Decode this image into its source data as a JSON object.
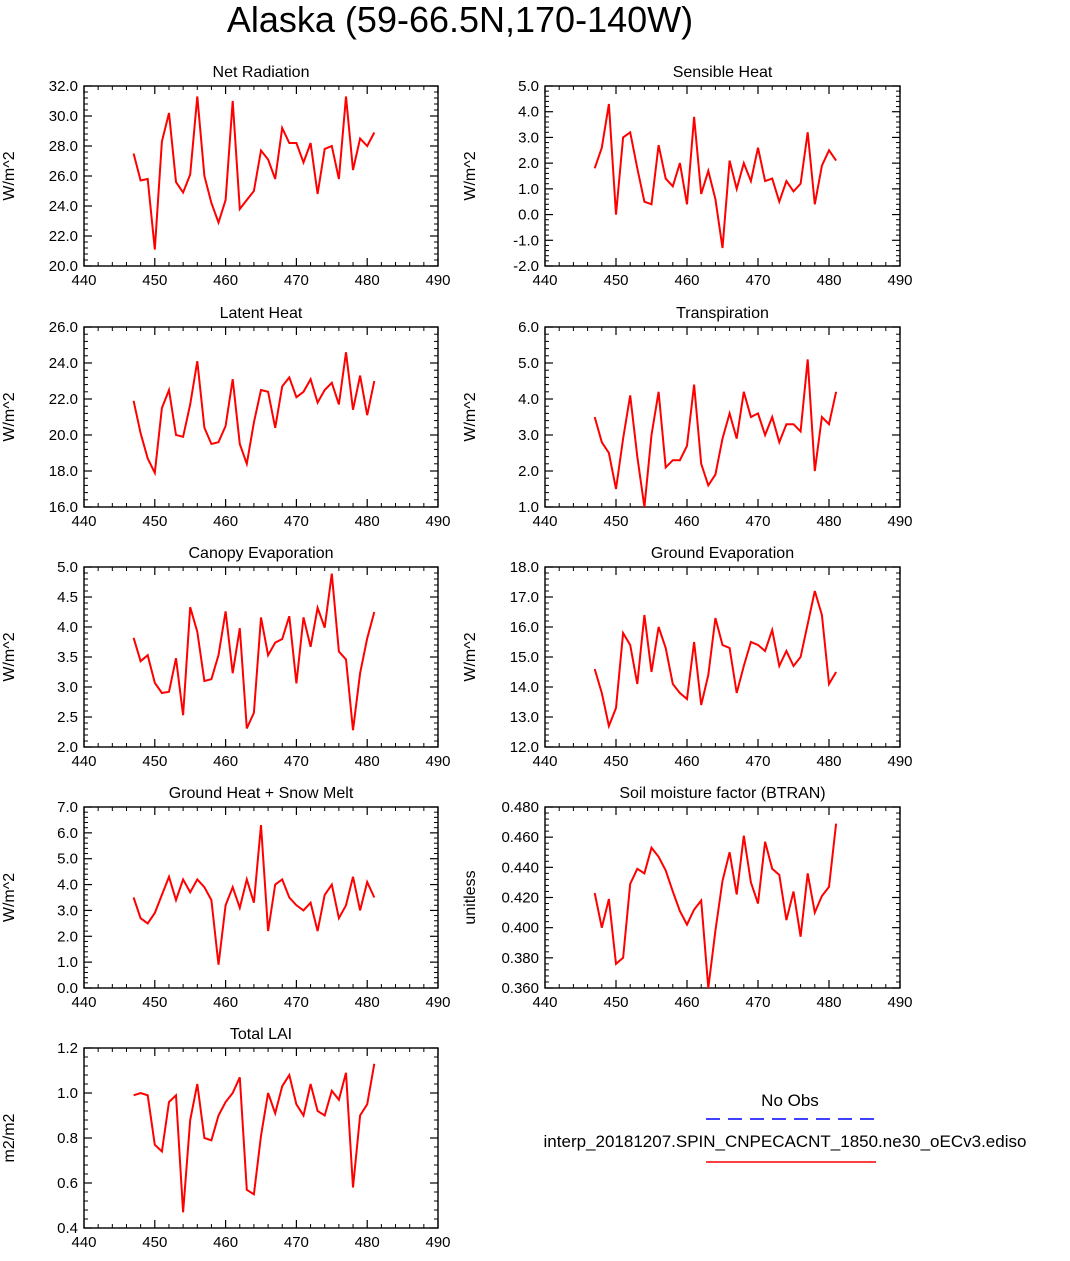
{
  "figure": {
    "title": "Alaska (59-66.5N,170-140W)",
    "line_color": "#ff0000",
    "legend": {
      "obs_label": "No Obs",
      "obs_color": "#0000ff",
      "model_label": "interp_20181207.SPIN_CNPECACNT_1850.ne30_oECv3.ediso",
      "model_color": "#ff0000"
    }
  },
  "chart_data": [
    {
      "type": "line",
      "title": "Net Radiation",
      "xlabel": "",
      "ylabel": "W/m^2",
      "xlim": [
        440,
        490
      ],
      "ylim": [
        20.0,
        32.0
      ],
      "xticks": [
        440,
        450,
        460,
        470,
        480,
        490
      ],
      "yticks": [
        "20.0",
        "22.0",
        "24.0",
        "26.0",
        "28.0",
        "30.0",
        "32.0"
      ],
      "x": [
        447,
        448,
        449,
        450,
        451,
        452,
        453,
        454,
        455,
        456,
        457,
        458,
        459,
        460,
        461,
        462,
        463,
        464,
        465,
        466,
        467,
        468,
        469,
        470,
        471,
        472,
        473,
        474,
        475,
        476,
        477,
        478,
        479,
        480,
        481
      ],
      "y": [
        27.5,
        25.7,
        25.8,
        21.1,
        28.3,
        30.2,
        25.6,
        24.9,
        26.1,
        31.3,
        26.0,
        24.2,
        22.9,
        24.4,
        31.0,
        23.8,
        24.4,
        25.0,
        27.7,
        27.1,
        25.8,
        29.2,
        28.2,
        28.2,
        26.9,
        28.2,
        24.8,
        27.8,
        28.0,
        25.8,
        31.3,
        26.4,
        28.5,
        28.0,
        28.9
      ]
    },
    {
      "type": "line",
      "title": "Sensible Heat",
      "xlabel": "",
      "ylabel": "W/m^2",
      "xlim": [
        440,
        490
      ],
      "ylim": [
        -2.0,
        5.0
      ],
      "xticks": [
        440,
        450,
        460,
        470,
        480,
        490
      ],
      "yticks": [
        "-2.0",
        "-1.0",
        "0.0",
        "1.0",
        "2.0",
        "3.0",
        "4.0",
        "5.0"
      ],
      "x": [
        447,
        448,
        449,
        450,
        451,
        452,
        453,
        454,
        455,
        456,
        457,
        458,
        459,
        460,
        461,
        462,
        463,
        464,
        465,
        466,
        467,
        468,
        469,
        470,
        471,
        472,
        473,
        474,
        475,
        476,
        477,
        478,
        479,
        480,
        481
      ],
      "y": [
        1.8,
        2.6,
        4.3,
        0.0,
        3.0,
        3.2,
        1.8,
        0.5,
        0.4,
        2.7,
        1.4,
        1.1,
        2.0,
        0.4,
        3.8,
        0.8,
        1.7,
        0.6,
        -1.3,
        2.1,
        1.0,
        2.0,
        1.3,
        2.6,
        1.3,
        1.4,
        0.5,
        1.3,
        0.9,
        1.2,
        3.2,
        0.4,
        1.9,
        2.5,
        2.1
      ]
    },
    {
      "type": "line",
      "title": "Latent Heat",
      "xlabel": "",
      "ylabel": "W/m^2",
      "xlim": [
        440,
        490
      ],
      "ylim": [
        16.0,
        26.0
      ],
      "xticks": [
        440,
        450,
        460,
        470,
        480,
        490
      ],
      "yticks": [
        "16.0",
        "18.0",
        "20.0",
        "22.0",
        "24.0",
        "26.0"
      ],
      "x": [
        447,
        448,
        449,
        450,
        451,
        452,
        453,
        454,
        455,
        456,
        457,
        458,
        459,
        460,
        461,
        462,
        463,
        464,
        465,
        466,
        467,
        468,
        469,
        470,
        471,
        472,
        473,
        474,
        475,
        476,
        477,
        478,
        479,
        480,
        481
      ],
      "y": [
        21.9,
        20.1,
        18.7,
        17.9,
        21.5,
        22.5,
        20.0,
        19.9,
        21.7,
        24.1,
        20.4,
        19.5,
        19.6,
        20.5,
        23.1,
        19.5,
        18.4,
        20.7,
        22.5,
        22.4,
        20.4,
        22.7,
        23.2,
        22.1,
        22.4,
        23.1,
        21.8,
        22.5,
        22.9,
        21.7,
        24.6,
        21.4,
        23.3,
        21.1,
        23.0
      ]
    },
    {
      "type": "line",
      "title": "Transpiration",
      "xlabel": "",
      "ylabel": "W/m^2",
      "xlim": [
        440,
        490
      ],
      "ylim": [
        1.0,
        6.0
      ],
      "xticks": [
        440,
        450,
        460,
        470,
        480,
        490
      ],
      "yticks": [
        "1.0",
        "2.0",
        "3.0",
        "4.0",
        "5.0",
        "6.0"
      ],
      "x": [
        447,
        448,
        449,
        450,
        451,
        452,
        453,
        454,
        455,
        456,
        457,
        458,
        459,
        460,
        461,
        462,
        463,
        464,
        465,
        466,
        467,
        468,
        469,
        470,
        471,
        472,
        473,
        474,
        475,
        476,
        477,
        478,
        479,
        480,
        481
      ],
      "y": [
        3.5,
        2.8,
        2.5,
        1.5,
        2.9,
        4.1,
        2.4,
        1.0,
        3.0,
        4.2,
        2.1,
        2.3,
        2.3,
        2.7,
        4.4,
        2.2,
        1.6,
        1.9,
        2.9,
        3.6,
        2.9,
        4.2,
        3.5,
        3.6,
        3.0,
        3.5,
        2.8,
        3.3,
        3.3,
        3.1,
        5.1,
        2.0,
        3.5,
        3.3,
        4.2
      ]
    },
    {
      "type": "line",
      "title": "Canopy Evaporation",
      "xlabel": "",
      "ylabel": "W/m^2",
      "xlim": [
        440,
        490
      ],
      "ylim": [
        2.0,
        5.0
      ],
      "xticks": [
        440,
        450,
        460,
        470,
        480,
        490
      ],
      "yticks": [
        "2.0",
        "2.5",
        "3.0",
        "3.5",
        "4.0",
        "4.5",
        "5.0"
      ],
      "x": [
        447,
        448,
        449,
        450,
        451,
        452,
        453,
        454,
        455,
        456,
        457,
        458,
        459,
        460,
        461,
        462,
        463,
        464,
        465,
        466,
        467,
        468,
        469,
        470,
        471,
        472,
        473,
        474,
        475,
        476,
        477,
        478,
        479,
        480,
        481
      ],
      "y": [
        3.82,
        3.43,
        3.53,
        3.07,
        2.9,
        2.92,
        3.48,
        2.53,
        4.33,
        3.92,
        3.1,
        3.13,
        3.53,
        4.26,
        3.23,
        3.98,
        2.31,
        2.57,
        4.16,
        3.53,
        3.74,
        3.8,
        4.18,
        3.06,
        4.16,
        3.67,
        4.32,
        3.99,
        4.89,
        3.59,
        3.46,
        2.28,
        3.23,
        3.81,
        4.25
      ]
    },
    {
      "type": "line",
      "title": "Ground Evaporation",
      "xlabel": "",
      "ylabel": "W/m^2",
      "xlim": [
        440,
        490
      ],
      "ylim": [
        12.0,
        18.0
      ],
      "xticks": [
        440,
        450,
        460,
        470,
        480,
        490
      ],
      "yticks": [
        "12.0",
        "13.0",
        "14.0",
        "15.0",
        "16.0",
        "17.0",
        "18.0"
      ],
      "x": [
        447,
        448,
        449,
        450,
        451,
        452,
        453,
        454,
        455,
        456,
        457,
        458,
        459,
        460,
        461,
        462,
        463,
        464,
        465,
        466,
        467,
        468,
        469,
        470,
        471,
        472,
        473,
        474,
        475,
        476,
        477,
        478,
        479,
        480,
        481
      ],
      "y": [
        14.6,
        13.8,
        12.7,
        13.3,
        15.8,
        15.4,
        14.1,
        16.4,
        14.5,
        16.0,
        15.3,
        14.1,
        13.8,
        13.6,
        15.5,
        13.4,
        14.4,
        16.3,
        15.4,
        15.3,
        13.8,
        14.7,
        15.5,
        15.4,
        15.2,
        15.9,
        14.7,
        15.2,
        14.7,
        15.0,
        16.1,
        17.2,
        16.4,
        14.1,
        14.5
      ]
    },
    {
      "type": "line",
      "title": "Ground Heat + Snow Melt",
      "xlabel": "",
      "ylabel": "W/m^2",
      "xlim": [
        440,
        490
      ],
      "ylim": [
        0.0,
        7.0
      ],
      "xticks": [
        440,
        450,
        460,
        470,
        480,
        490
      ],
      "yticks": [
        "0.0",
        "1.0",
        "2.0",
        "3.0",
        "4.0",
        "5.0",
        "6.0",
        "7.0"
      ],
      "x": [
        447,
        448,
        449,
        450,
        451,
        452,
        453,
        454,
        455,
        456,
        457,
        458,
        459,
        460,
        461,
        462,
        463,
        464,
        465,
        466,
        467,
        468,
        469,
        470,
        471,
        472,
        473,
        474,
        475,
        476,
        477,
        478,
        479,
        480,
        481
      ],
      "y": [
        3.5,
        2.7,
        2.5,
        2.9,
        3.6,
        4.3,
        3.4,
        4.2,
        3.7,
        4.2,
        3.9,
        3.4,
        0.9,
        3.2,
        3.9,
        3.1,
        4.2,
        3.3,
        6.3,
        2.2,
        4.0,
        4.2,
        3.5,
        3.2,
        3.0,
        3.3,
        2.2,
        3.6,
        4.0,
        2.7,
        3.2,
        4.3,
        3.0,
        4.1,
        3.5
      ]
    },
    {
      "type": "line",
      "title": "Soil moisture factor (BTRAN)",
      "xlabel": "",
      "ylabel": "unitless",
      "xlim": [
        440,
        490
      ],
      "ylim": [
        0.36,
        0.48
      ],
      "xticks": [
        440,
        450,
        460,
        470,
        480,
        490
      ],
      "yticks": [
        "0.360",
        "0.380",
        "0.400",
        "0.420",
        "0.440",
        "0.460",
        "0.480"
      ],
      "x": [
        447,
        448,
        449,
        450,
        451,
        452,
        453,
        454,
        455,
        456,
        457,
        458,
        459,
        460,
        461,
        462,
        463,
        464,
        465,
        466,
        467,
        468,
        469,
        470,
        471,
        472,
        473,
        474,
        475,
        476,
        477,
        478,
        479,
        480,
        481
      ],
      "y": [
        0.423,
        0.4,
        0.419,
        0.376,
        0.38,
        0.429,
        0.439,
        0.436,
        0.453,
        0.447,
        0.438,
        0.424,
        0.411,
        0.402,
        0.412,
        0.418,
        0.36,
        0.398,
        0.431,
        0.45,
        0.422,
        0.461,
        0.43,
        0.416,
        0.457,
        0.439,
        0.435,
        0.405,
        0.424,
        0.394,
        0.436,
        0.41,
        0.421,
        0.427,
        0.469
      ]
    },
    {
      "type": "line",
      "title": "Total LAI",
      "xlabel": "",
      "ylabel": "m2/m2",
      "xlim": [
        440,
        490
      ],
      "ylim": [
        0.4,
        1.2
      ],
      "xticks": [
        440,
        450,
        460,
        470,
        480,
        490
      ],
      "yticks": [
        "0.4",
        "0.6",
        "0.8",
        "1.0",
        "1.2"
      ],
      "x": [
        447,
        448,
        449,
        450,
        451,
        452,
        453,
        454,
        455,
        456,
        457,
        458,
        459,
        460,
        461,
        462,
        463,
        464,
        465,
        466,
        467,
        468,
        469,
        470,
        471,
        472,
        473,
        474,
        475,
        476,
        477,
        478,
        479,
        480,
        481
      ],
      "y": [
        0.99,
        1.0,
        0.99,
        0.77,
        0.74,
        0.96,
        0.99,
        0.47,
        0.88,
        1.04,
        0.8,
        0.79,
        0.9,
        0.96,
        1.0,
        1.07,
        0.57,
        0.55,
        0.81,
        1.0,
        0.91,
        1.03,
        1.08,
        0.95,
        0.9,
        1.04,
        0.92,
        0.9,
        1.01,
        0.97,
        1.09,
        0.58,
        0.9,
        0.95,
        1.13
      ]
    }
  ]
}
